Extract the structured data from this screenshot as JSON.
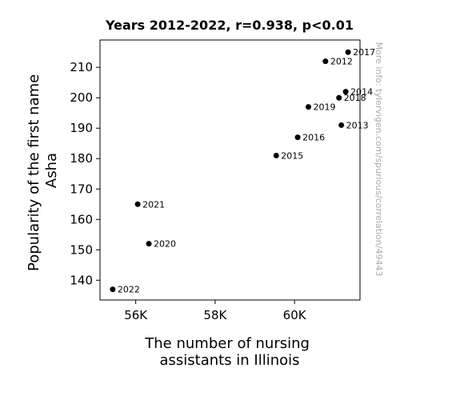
{
  "chart_data": {
    "type": "scatter",
    "title": "Years 2012-2022, r=0.938, p<0.01",
    "xlabel_lines": [
      "The number of nursing",
      "assistants in Illinois"
    ],
    "ylabel_lines": [
      "Popularity of the first name",
      "Asha"
    ],
    "watermark": "More info: tylervigen.com/spurious/correlation/49443",
    "xlim": [
      55100,
      61650
    ],
    "ylim": [
      133.5,
      219
    ],
    "xticks": [
      {
        "value": 56000,
        "label": "56K"
      },
      {
        "value": 58000,
        "label": "58K"
      },
      {
        "value": 60000,
        "label": "60K"
      }
    ],
    "yticks": [
      {
        "value": 140,
        "label": "140"
      },
      {
        "value": 150,
        "label": "150"
      },
      {
        "value": 160,
        "label": "160"
      },
      {
        "value": 170,
        "label": "170"
      },
      {
        "value": 180,
        "label": "180"
      },
      {
        "value": 190,
        "label": "190"
      },
      {
        "value": 200,
        "label": "200"
      },
      {
        "value": 210,
        "label": "210"
      }
    ],
    "points": [
      {
        "label": "2012",
        "x": 60780,
        "y": 212
      },
      {
        "label": "2013",
        "x": 61180,
        "y": 191
      },
      {
        "label": "2014",
        "x": 61290,
        "y": 202
      },
      {
        "label": "2015",
        "x": 59540,
        "y": 181
      },
      {
        "label": "2016",
        "x": 60080,
        "y": 187
      },
      {
        "label": "2017",
        "x": 61350,
        "y": 215
      },
      {
        "label": "2018",
        "x": 61120,
        "y": 200
      },
      {
        "label": "2019",
        "x": 60350,
        "y": 197
      },
      {
        "label": "2020",
        "x": 56330,
        "y": 152
      },
      {
        "label": "2021",
        "x": 56050,
        "y": 165
      },
      {
        "label": "2022",
        "x": 55420,
        "y": 137
      }
    ]
  }
}
